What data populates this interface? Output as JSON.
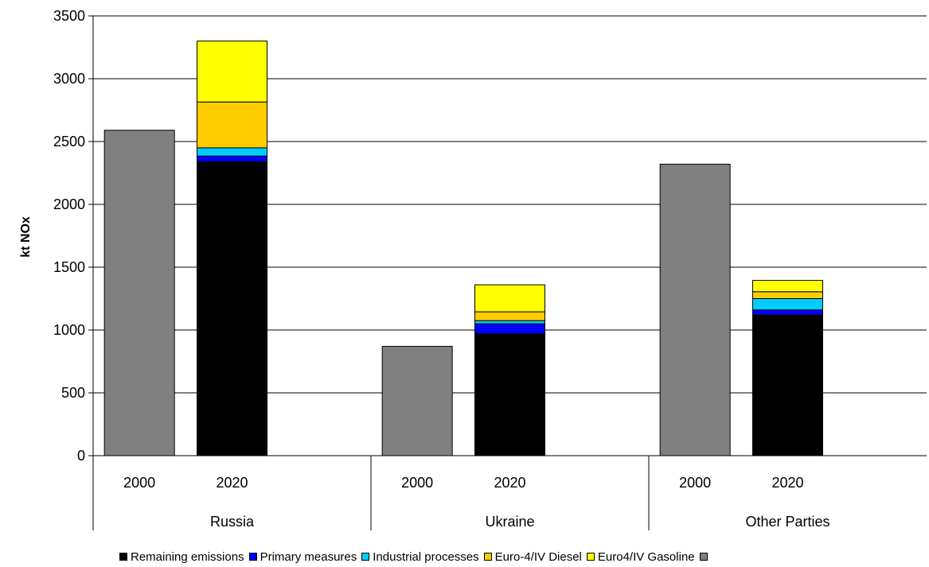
{
  "chart_data": {
    "type": "bar",
    "stacked": true,
    "ylabel": "kt NOx",
    "xlabel": "",
    "ylim": [
      0,
      3500
    ],
    "yticks": [
      0,
      500,
      1000,
      1500,
      2000,
      2500,
      3000,
      3500
    ],
    "grid": true,
    "legend_position": "bottom",
    "groups": [
      {
        "label": "Russia",
        "categories": [
          "2000",
          "2020"
        ]
      },
      {
        "label": "Ukraine",
        "categories": [
          "2000",
          "2020"
        ]
      },
      {
        "label": "Other Parties",
        "categories": [
          "2000",
          "2020"
        ]
      }
    ],
    "series": [
      {
        "name": "Remaining emissions",
        "color": "#000000",
        "values": [
          0,
          2340,
          0,
          970,
          0,
          1120
        ]
      },
      {
        "name": "Primary measures",
        "color": "#0000FF",
        "values": [
          0,
          45,
          0,
          80,
          0,
          40
        ]
      },
      {
        "name": "Industrial processes",
        "color": "#00CCFF",
        "values": [
          0,
          65,
          0,
          25,
          0,
          90
        ]
      },
      {
        "name": "Euro-4/IV Diesel",
        "color": "#FFCC00",
        "values": [
          0,
          365,
          0,
          70,
          0,
          55
        ]
      },
      {
        "name": "Euro4/IV Gasoline",
        "color": "#FFFF00",
        "values": [
          0,
          485,
          0,
          215,
          0,
          90
        ]
      },
      {
        "name": "",
        "color": "#808080",
        "values": [
          2590,
          0,
          870,
          0,
          2320,
          0
        ]
      }
    ]
  }
}
